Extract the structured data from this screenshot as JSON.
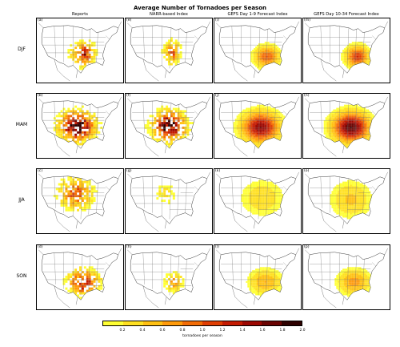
{
  "title": "Average Number of Tornadoes per Season",
  "columns": [
    "Reports",
    "NARR-based Index",
    "GEFS Day 1-9 Forecast Index",
    "GEFS Day 10-34 Forecast Index"
  ],
  "rows": [
    "DJF",
    "MAM",
    "JJA",
    "SON"
  ],
  "panel_labels": [
    [
      "(a)",
      "(e)",
      "(i)",
      "(m)"
    ],
    [
      "(b)",
      "(f)",
      "(j)",
      "(n)"
    ],
    [
      "(c)",
      "(g)",
      "(k)",
      "(o)"
    ],
    [
      "(d)",
      "(h)",
      "(l)",
      "(p)"
    ]
  ],
  "colorbar": {
    "ticks": [
      "0.2",
      "0.4",
      "0.6",
      "0.8",
      "1.0",
      "1.2",
      "1.4",
      "1.6",
      "1.8",
      "2.0"
    ],
    "label": "tornadoes per season",
    "colors": [
      "#ffff33",
      "#ffe021",
      "#ffc012",
      "#ff9a0a",
      "#f26c06",
      "#e03e03",
      "#c41b02",
      "#9c0802",
      "#6a0402",
      "#2e0100"
    ],
    "min": 0.0,
    "max": 2.0
  }
}
